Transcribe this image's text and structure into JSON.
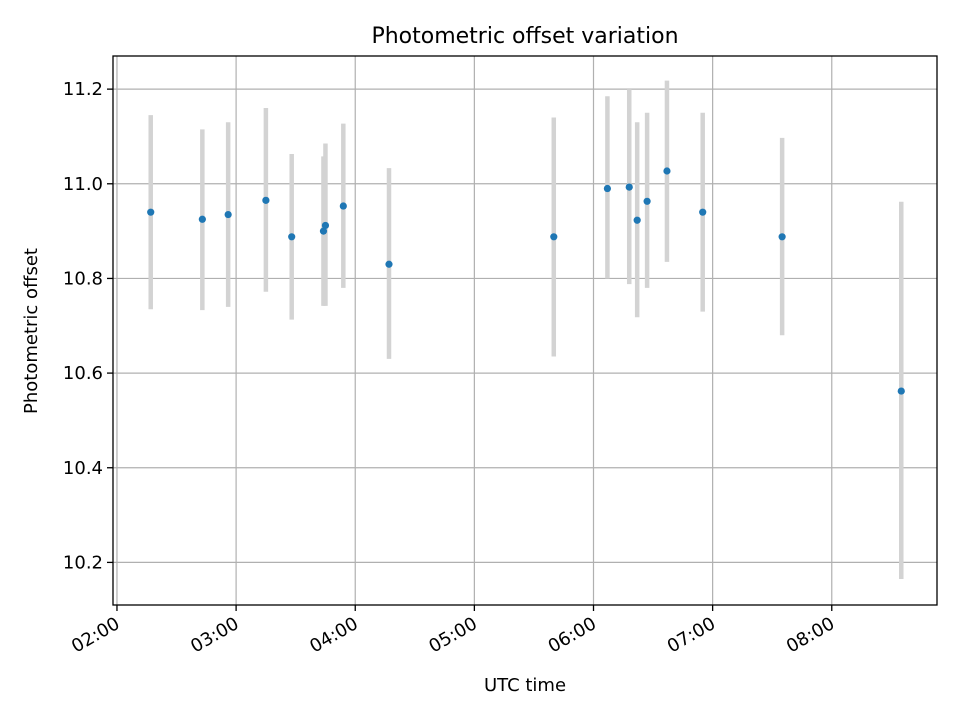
{
  "chart_data": {
    "type": "scatter",
    "title": "Photometric offset variation",
    "xlabel": "UTC time",
    "ylabel": "Photometric offset",
    "x_is_time": true,
    "xlim": [
      "01:58",
      "08:53"
    ],
    "ylim": [
      10.11,
      11.27
    ],
    "xticks": [
      "02:00",
      "03:00",
      "04:00",
      "05:00",
      "06:00",
      "07:00",
      "08:00"
    ],
    "yticks": [
      10.2,
      10.4,
      10.6,
      10.8,
      11.0,
      11.2
    ],
    "ytick_labels": [
      "10.2",
      "10.4",
      "10.6",
      "10.8",
      "11.0",
      "11.2"
    ],
    "grid": true,
    "marker_color": "#1f77b4",
    "errorbar_color": "#d3d3d3",
    "points": [
      {
        "x": "02:17",
        "y": 10.94,
        "ylo": 10.735,
        "yhi": 11.145
      },
      {
        "x": "02:43",
        "y": 10.925,
        "ylo": 10.733,
        "yhi": 11.115
      },
      {
        "x": "02:56",
        "y": 10.935,
        "ylo": 10.74,
        "yhi": 11.13
      },
      {
        "x": "03:15",
        "y": 10.965,
        "ylo": 10.772,
        "yhi": 11.16
      },
      {
        "x": "03:28",
        "y": 10.888,
        "ylo": 10.713,
        "yhi": 11.063
      },
      {
        "x": "03:44",
        "y": 10.9,
        "ylo": 10.742,
        "yhi": 11.058
      },
      {
        "x": "03:45",
        "y": 10.912,
        "ylo": 10.742,
        "yhi": 11.085
      },
      {
        "x": "03:54",
        "y": 10.953,
        "ylo": 10.78,
        "yhi": 11.127
      },
      {
        "x": "04:17",
        "y": 10.83,
        "ylo": 10.63,
        "yhi": 11.033
      },
      {
        "x": "05:40",
        "y": 10.888,
        "ylo": 10.635,
        "yhi": 11.14
      },
      {
        "x": "06:07",
        "y": 10.99,
        "ylo": 10.8,
        "yhi": 11.185
      },
      {
        "x": "06:18",
        "y": 10.993,
        "ylo": 10.788,
        "yhi": 11.2
      },
      {
        "x": "06:22",
        "y": 10.923,
        "ylo": 10.718,
        "yhi": 11.13
      },
      {
        "x": "06:27",
        "y": 10.963,
        "ylo": 10.78,
        "yhi": 11.15
      },
      {
        "x": "06:37",
        "y": 11.027,
        "ylo": 10.835,
        "yhi": 11.218
      },
      {
        "x": "06:55",
        "y": 10.94,
        "ylo": 10.73,
        "yhi": 11.15
      },
      {
        "x": "07:35",
        "y": 10.888,
        "ylo": 10.68,
        "yhi": 11.097
      },
      {
        "x": "08:35",
        "y": 10.562,
        "ylo": 10.165,
        "yhi": 10.962
      }
    ]
  }
}
